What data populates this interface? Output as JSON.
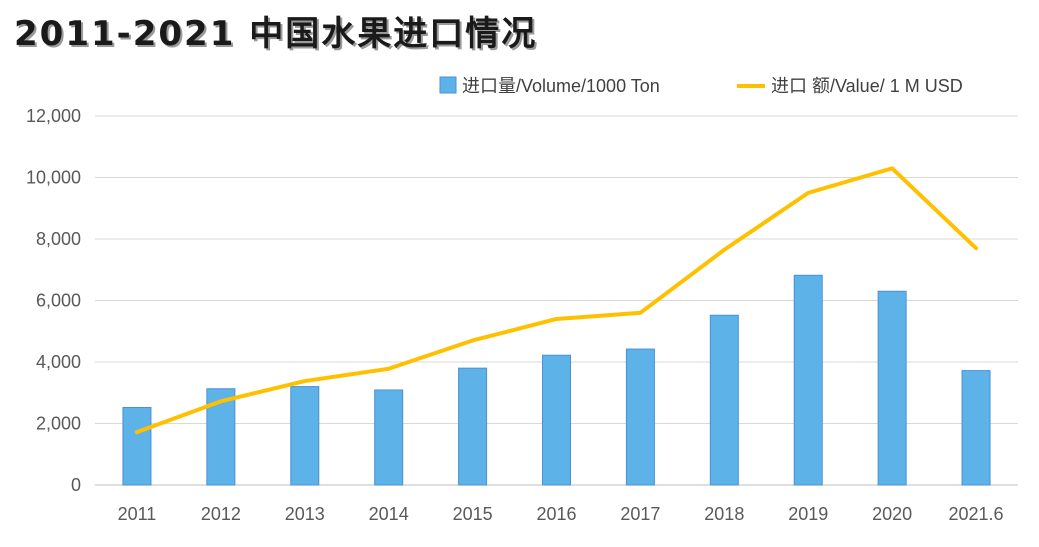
{
  "chart_data": {
    "type": "bar",
    "title": "2011-2021 中国水果进口情况",
    "categories": [
      "2011",
      "2012",
      "2013",
      "2014",
      "2015",
      "2016",
      "2017",
      "2018",
      "2019",
      "2020",
      "2021.6"
    ],
    "series": [
      {
        "name": "进口量/Volume/1000 Ton",
        "type": "bar",
        "color": "#5DB3E8",
        "values": [
          2520,
          3130,
          3200,
          3090,
          3800,
          4220,
          4420,
          5520,
          6820,
          6300,
          3720
        ]
      },
      {
        "name": "进口 额/Value/ 1 M USD",
        "type": "line",
        "color": "#FFC000",
        "values": [
          1720,
          2720,
          3380,
          3780,
          4700,
          5400,
          5600,
          7650,
          9500,
          10300,
          7700
        ]
      }
    ],
    "y_ticks": [
      "0",
      "2,000",
      "4,000",
      "6,000",
      "8,000",
      "10,000",
      "12,000"
    ],
    "ylim": [
      0,
      12000
    ],
    "xlabel": "",
    "ylabel": "",
    "legend": "top-right",
    "grid": true
  }
}
